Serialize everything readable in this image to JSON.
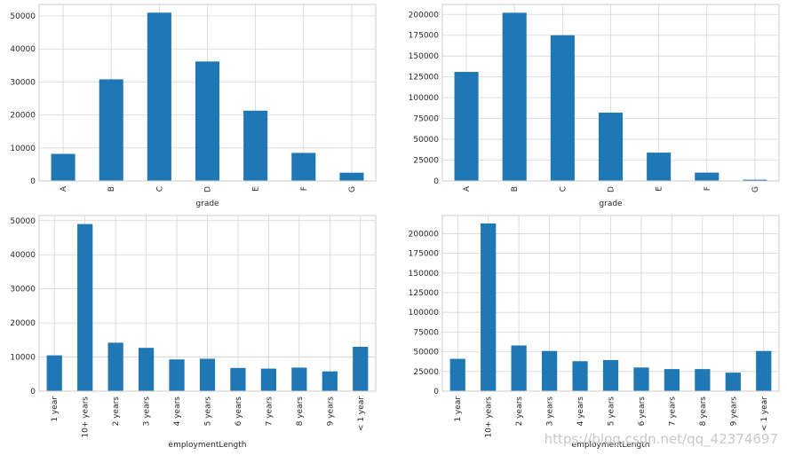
{
  "chart_data": [
    {
      "type": "bar",
      "categories": [
        "A",
        "B",
        "C",
        "D",
        "E",
        "F",
        "G"
      ],
      "values": [
        8200,
        30800,
        51000,
        36200,
        21300,
        8500,
        2500
      ],
      "xlabel": "grade",
      "ylabel": "",
      "ylim": [
        0,
        53500
      ],
      "yticks": [
        0,
        10000,
        20000,
        30000,
        40000,
        50000
      ],
      "grid": true,
      "bar_color": "#1f77b4"
    },
    {
      "type": "bar",
      "categories": [
        "A",
        "B",
        "C",
        "D",
        "E",
        "F",
        "G"
      ],
      "values": [
        131000,
        202000,
        175000,
        82000,
        34000,
        10000,
        1500
      ],
      "xlabel": "grade",
      "ylabel": "",
      "ylim": [
        0,
        212000
      ],
      "yticks": [
        0,
        25000,
        50000,
        75000,
        100000,
        125000,
        150000,
        175000,
        200000
      ],
      "grid": true,
      "bar_color": "#1f77b4"
    },
    {
      "type": "bar",
      "categories": [
        "1 year",
        "10+ years",
        "2 years",
        "3 years",
        "4 years",
        "5 years",
        "6 years",
        "7 years",
        "8 years",
        "9 years",
        "< 1 year"
      ],
      "values": [
        10500,
        49000,
        14200,
        12700,
        9300,
        9500,
        6800,
        6600,
        6900,
        5800,
        13000
      ],
      "xlabel": "employmentLength",
      "ylabel": "",
      "ylim": [
        0,
        51500
      ],
      "yticks": [
        0,
        10000,
        20000,
        30000,
        40000,
        50000
      ],
      "grid": true,
      "bar_color": "#1f77b4"
    },
    {
      "type": "bar",
      "categories": [
        "1 year",
        "10+ years",
        "2 years",
        "3 years",
        "4 years",
        "5 years",
        "6 years",
        "7 years",
        "8 years",
        "9 years",
        "< 1 year"
      ],
      "values": [
        41000,
        213000,
        58000,
        51000,
        38000,
        39500,
        30000,
        28000,
        28000,
        23500,
        51000
      ],
      "xlabel": "employmentLength",
      "ylabel": "",
      "ylim": [
        0,
        223000
      ],
      "yticks": [
        0,
        25000,
        50000,
        75000,
        100000,
        125000,
        150000,
        175000,
        200000
      ],
      "grid": true,
      "bar_color": "#1f77b4"
    }
  ],
  "watermark": "https://blog.csdn.net/qq_42374697"
}
